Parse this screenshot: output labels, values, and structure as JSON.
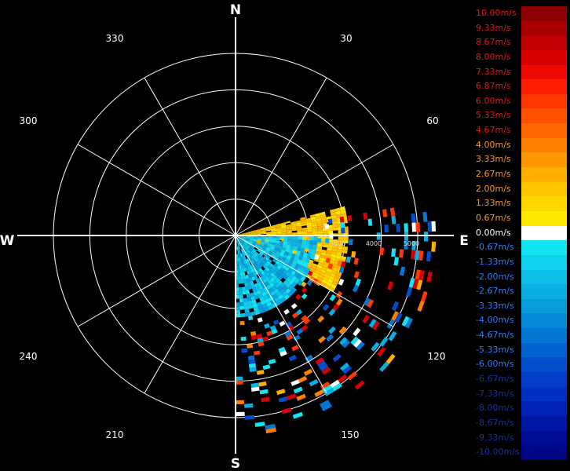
{
  "chart_data": {
    "type": "polar-radar",
    "compass": {
      "north": "N",
      "east": "E",
      "south": "S",
      "west": "W"
    },
    "angle_ticks": [
      "30",
      "60",
      "120",
      "150",
      "210",
      "240",
      "300",
      "330"
    ],
    "range_ticks": [
      "3000",
      "4000",
      "5000"
    ],
    "scale": {
      "unit": "m/s",
      "entries": [
        {
          "label": "10.00m/s",
          "value": 10.0,
          "color": "#8c0000"
        },
        {
          "label": "9.33m/s",
          "value": 9.33,
          "color": "#a80000"
        },
        {
          "label": "8.67m/s",
          "value": 8.67,
          "color": "#c00000"
        },
        {
          "label": "8.00m/s",
          "value": 8.0,
          "color": "#d80000"
        },
        {
          "label": "7.33m/s",
          "value": 7.33,
          "color": "#ee0a00"
        },
        {
          "label": "6.87m/s",
          "value": 6.87,
          "color": "#ff1e00"
        },
        {
          "label": "6.00m/s",
          "value": 6.0,
          "color": "#ff3800"
        },
        {
          "label": "5.33m/s",
          "value": 5.33,
          "color": "#ff5000"
        },
        {
          "label": "4.67m/s",
          "value": 4.67,
          "color": "#ff6800"
        },
        {
          "label": "4.00m/s",
          "value": 4.0,
          "color": "#ff8000"
        },
        {
          "label": "3.33m/s",
          "value": 3.33,
          "color": "#ff9800"
        },
        {
          "label": "2.67m/s",
          "value": 2.67,
          "color": "#ffb000"
        },
        {
          "label": "2.00m/s",
          "value": 2.0,
          "color": "#ffc400"
        },
        {
          "label": "1.33m/s",
          "value": 1.33,
          "color": "#ffd800"
        },
        {
          "label": "0.67m/s",
          "value": 0.67,
          "color": "#ffea00"
        },
        {
          "label": "0.00m/s",
          "value": 0.0,
          "color": "#ffffff"
        },
        {
          "label": "-0.67m/s",
          "value": -0.67,
          "color": "#12e4f4"
        },
        {
          "label": "-1.33m/s",
          "value": -1.33,
          "color": "#10d2ee"
        },
        {
          "label": "-2.00m/s",
          "value": -2.0,
          "color": "#0ec0e8"
        },
        {
          "label": "-2.67m/s",
          "value": -2.67,
          "color": "#0aaee2"
        },
        {
          "label": "-3.33m/s",
          "value": -3.33,
          "color": "#089cdc"
        },
        {
          "label": "-4.00m/s",
          "value": -4.0,
          "color": "#068ad8"
        },
        {
          "label": "-4.67m/s",
          "value": -4.67,
          "color": "#0476d4"
        },
        {
          "label": "-5.33m/s",
          "value": -5.33,
          "color": "#0262d0"
        },
        {
          "label": "-6.00m/s",
          "value": -6.0,
          "color": "#004ecc"
        },
        {
          "label": "-6.67m/s",
          "value": -6.67,
          "color": "#003ec8"
        },
        {
          "label": "-7.33m/s",
          "value": -7.33,
          "color": "#0030c0"
        },
        {
          "label": "-8.00m/s",
          "value": -8.0,
          "color": "#0022b4"
        },
        {
          "label": "-8.67m/s",
          "value": -8.67,
          "color": "#0016a4"
        },
        {
          "label": "-9.33m/s",
          "value": -9.33,
          "color": "#000c94"
        },
        {
          "label": "-10.00m/s",
          "value": -10.0,
          "color": "#000684"
        }
      ]
    },
    "label_colors": {
      "positive": "#e01818",
      "warm": "#ff9a1a",
      "zero": "#ffffff",
      "negative": "#2a7cff",
      "deep": "#1a2ea0"
    },
    "echo_sectors": [
      {
        "az_from": 75,
        "az_to": 120,
        "r_from": 0,
        "r_to": 0.62,
        "values": [
          1.33,
          2.0,
          2.67,
          0.67,
          2.0
        ]
      },
      {
        "az_from": 90,
        "az_to": 180,
        "r_from": 0,
        "r_to": 0.45,
        "values": [
          -2.0,
          -2.67,
          -1.33,
          -3.33,
          -0.67
        ]
      },
      {
        "az_from": 80,
        "az_to": 180,
        "r_from": 0.45,
        "r_to": 1.1,
        "values": [
          -2.67,
          8.0,
          4.0,
          -4.67,
          2.67,
          -0.67,
          6.0,
          -6.0,
          0.0
        ]
      }
    ]
  }
}
